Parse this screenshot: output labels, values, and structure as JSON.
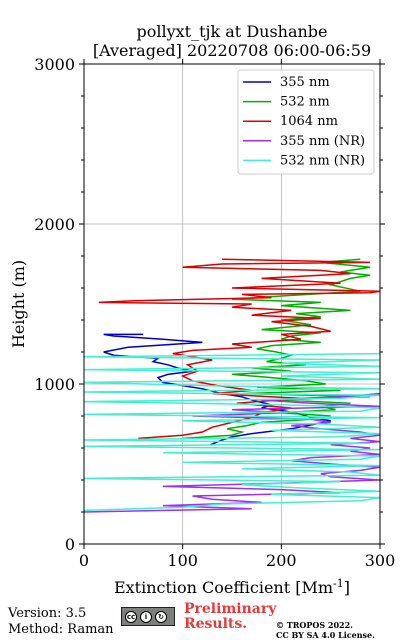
{
  "chart_data": {
    "type": "line",
    "title": "pollyxt_tjk at Dushanbe",
    "subtitle": "[Averaged] 20220708 06:00-06:59",
    "xlabel": "Extinction Coefficient [Mm",
    "xlabel_sup": "-1",
    "xlabel_end": "]",
    "ylabel": "Height (m)",
    "xlim": [
      0,
      300
    ],
    "ylim": [
      0,
      3000
    ],
    "xticks": [
      0,
      100,
      200,
      300
    ],
    "yticks": [
      0,
      1000,
      2000,
      3000
    ],
    "grid": true,
    "legend_position": "top-right",
    "series": [
      {
        "name": "355 nm",
        "color": "#0000cc",
        "points": [
          [
            128,
            620
          ],
          [
            140,
            650
          ],
          [
            150,
            670
          ],
          [
            170,
            690
          ],
          [
            210,
            720
          ],
          [
            235,
            750
          ],
          [
            250,
            770
          ],
          [
            230,
            790
          ],
          [
            220,
            810
          ],
          [
            205,
            830
          ],
          [
            180,
            850
          ],
          [
            190,
            870
          ],
          [
            170,
            900
          ],
          [
            160,
            920
          ],
          [
            140,
            940
          ],
          [
            120,
            970
          ],
          [
            100,
            990
          ],
          [
            80,
            1010
          ],
          [
            75,
            1040
          ],
          [
            85,
            1060
          ],
          [
            110,
            1080
          ],
          [
            95,
            1100
          ],
          [
            85,
            1120
          ],
          [
            70,
            1140
          ],
          [
            75,
            1160
          ],
          [
            30,
            1180
          ],
          [
            20,
            1200
          ],
          [
            45,
            1230
          ],
          [
            120,
            1260
          ],
          [
            80,
            1280
          ],
          [
            30,
            1300
          ],
          [
            20,
            1310
          ],
          [
            60,
            1310
          ]
        ]
      },
      {
        "name": "532 nm",
        "color": "#00b000",
        "points": [
          [
            100,
            660
          ],
          [
            150,
            680
          ],
          [
            160,
            700
          ],
          [
            145,
            720
          ],
          [
            165,
            740
          ],
          [
            180,
            760
          ],
          [
            230,
            780
          ],
          [
            250,
            800
          ],
          [
            200,
            820
          ],
          [
            255,
            840
          ],
          [
            240,
            860
          ],
          [
            270,
            880
          ],
          [
            200,
            900
          ],
          [
            290,
            920
          ],
          [
            160,
            940
          ],
          [
            260,
            960
          ],
          [
            175,
            980
          ],
          [
            245,
            1000
          ],
          [
            225,
            1020
          ],
          [
            190,
            1040
          ],
          [
            150,
            1060
          ],
          [
            210,
            1080
          ],
          [
            170,
            1100
          ],
          [
            225,
            1120
          ],
          [
            185,
            1140
          ],
          [
            200,
            1160
          ],
          [
            210,
            1180
          ],
          [
            195,
            1200
          ],
          [
            175,
            1220
          ],
          [
            190,
            1240
          ],
          [
            240,
            1260
          ],
          [
            200,
            1280
          ],
          [
            210,
            1300
          ],
          [
            240,
            1320
          ],
          [
            180,
            1340
          ],
          [
            230,
            1370
          ],
          [
            200,
            1400
          ],
          [
            240,
            1420
          ],
          [
            215,
            1440
          ],
          [
            270,
            1460
          ],
          [
            200,
            1490
          ],
          [
            240,
            1510
          ],
          [
            150,
            1530
          ],
          [
            200,
            1550
          ],
          [
            280,
            1580
          ],
          [
            250,
            1620
          ],
          [
            270,
            1660
          ],
          [
            290,
            1680
          ],
          [
            260,
            1700
          ],
          [
            290,
            1730
          ],
          [
            240,
            1760
          ],
          [
            280,
            1780
          ]
        ]
      },
      {
        "name": "1064 nm",
        "color": "#dd0000",
        "points": [
          [
            55,
            660
          ],
          [
            100,
            680
          ],
          [
            120,
            700
          ],
          [
            130,
            730
          ],
          [
            150,
            760
          ],
          [
            170,
            790
          ],
          [
            180,
            820
          ],
          [
            210,
            850
          ],
          [
            155,
            880
          ],
          [
            220,
            910
          ],
          [
            130,
            940
          ],
          [
            170,
            960
          ],
          [
            135,
            990
          ],
          [
            110,
            1020
          ],
          [
            100,
            1050
          ],
          [
            115,
            1080
          ],
          [
            105,
            1120
          ],
          [
            130,
            1150
          ],
          [
            90,
            1190
          ],
          [
            110,
            1210
          ],
          [
            170,
            1230
          ],
          [
            150,
            1250
          ],
          [
            220,
            1280
          ],
          [
            200,
            1310
          ],
          [
            250,
            1330
          ],
          [
            230,
            1360
          ],
          [
            190,
            1390
          ],
          [
            240,
            1410
          ],
          [
            170,
            1430
          ],
          [
            210,
            1460
          ],
          [
            150,
            1480
          ],
          [
            170,
            1500
          ],
          [
            15,
            1510
          ],
          [
            50,
            1520
          ],
          [
            190,
            1540
          ],
          [
            160,
            1560
          ],
          [
            290,
            1570
          ],
          [
            300,
            1580
          ],
          [
            150,
            1600
          ],
          [
            260,
            1630
          ],
          [
            180,
            1660
          ],
          [
            270,
            1690
          ],
          [
            240,
            1710
          ],
          [
            100,
            1730
          ],
          [
            140,
            1750
          ],
          [
            290,
            1760
          ],
          [
            140,
            1780
          ]
        ]
      },
      {
        "name": "355 nm (NR)",
        "color": "#9e30f0",
        "points": [
          [
            0,
            200
          ],
          [
            170,
            220
          ],
          [
            80,
            240
          ],
          [
            180,
            260
          ],
          [
            130,
            280
          ],
          [
            110,
            300
          ],
          [
            260,
            320
          ],
          [
            200,
            340
          ],
          [
            80,
            360
          ],
          [
            200,
            380
          ],
          [
            300,
            400
          ],
          [
            250,
            420
          ],
          [
            240,
            440
          ],
          [
            280,
            460
          ],
          [
            300,
            480
          ],
          [
            250,
            500
          ],
          [
            210,
            520
          ],
          [
            230,
            540
          ],
          [
            300,
            560
          ],
          [
            270,
            580
          ],
          [
            290,
            600
          ],
          [
            250,
            620
          ],
          [
            300,
            640
          ],
          [
            270,
            660
          ],
          [
            300,
            680
          ],
          [
            280,
            700
          ],
          [
            240,
            720
          ],
          [
            210,
            740
          ],
          [
            250,
            760
          ],
          [
            230,
            780
          ],
          [
            110,
            800
          ],
          [
            200,
            820
          ],
          [
            150,
            840
          ],
          [
            300,
            860
          ],
          [
            230,
            880
          ],
          [
            180,
            900
          ],
          [
            260,
            920
          ],
          [
            300,
            940
          ]
        ]
      },
      {
        "name": "532 nm (NR)",
        "color": "#40f0d0",
        "points": [
          [
            0,
            210
          ],
          [
            100,
            230
          ],
          [
            140,
            250
          ],
          [
            280,
            270
          ],
          [
            300,
            290
          ],
          [
            190,
            310
          ],
          [
            300,
            330
          ],
          [
            220,
            350
          ],
          [
            160,
            370
          ],
          [
            260,
            390
          ],
          [
            0,
            410
          ],
          [
            300,
            430
          ],
          [
            270,
            450
          ],
          [
            160,
            470
          ],
          [
            300,
            490
          ],
          [
            100,
            510
          ],
          [
            280,
            530
          ],
          [
            300,
            550
          ],
          [
            80,
            570
          ],
          [
            300,
            590
          ],
          [
            0,
            610
          ],
          [
            290,
            630
          ],
          [
            0,
            650
          ],
          [
            260,
            670
          ],
          [
            300,
            690
          ],
          [
            190,
            710
          ],
          [
            300,
            730
          ],
          [
            240,
            750
          ],
          [
            100,
            770
          ],
          [
            300,
            790
          ],
          [
            0,
            810
          ],
          [
            280,
            830
          ],
          [
            300,
            850
          ],
          [
            200,
            870
          ],
          [
            0,
            890
          ],
          [
            260,
            910
          ],
          [
            300,
            930
          ],
          [
            0,
            950
          ],
          [
            300,
            970
          ],
          [
            120,
            990
          ],
          [
            0,
            1010
          ],
          [
            300,
            1030
          ],
          [
            200,
            1050
          ],
          [
            300,
            1070
          ],
          [
            0,
            1090
          ],
          [
            300,
            1110
          ],
          [
            200,
            1130
          ],
          [
            300,
            1150
          ],
          [
            0,
            1170
          ],
          [
            300,
            1190
          ]
        ]
      }
    ]
  },
  "footer": {
    "version": "Version: 3.5",
    "method": "Method: Raman",
    "preliminary": "Preliminary\nResults.",
    "copyright": "© TROPOS 2022.\nCC BY SA 4.0 License."
  }
}
